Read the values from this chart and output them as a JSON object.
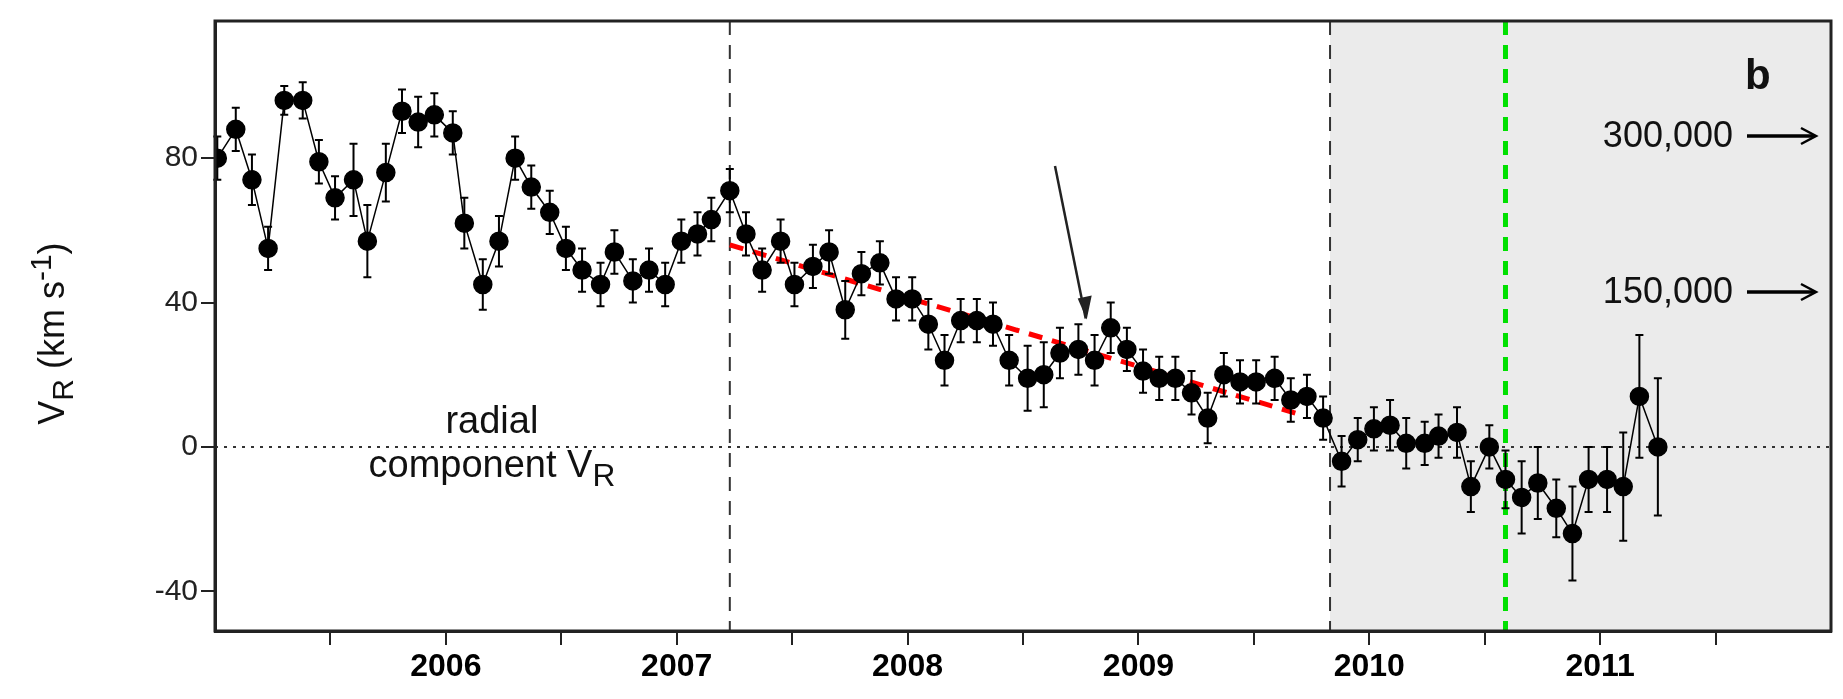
{
  "chart_data": {
    "type": "line",
    "ylabel": "V$_{R}$ (km s$^{-1}$)",
    "xlim": [
      2005.5,
      2012.5
    ],
    "xticks": [
      {
        "value": 2006,
        "label": null
      },
      {
        "value": 2006.5,
        "label": "2006"
      },
      {
        "value": 2007,
        "label": null
      },
      {
        "value": 2007.5,
        "label": "2007"
      },
      {
        "value": 2008,
        "label": null
      },
      {
        "value": 2008.5,
        "label": "2008"
      },
      {
        "value": 2009,
        "label": null
      },
      {
        "value": 2009.5,
        "label": "2009"
      },
      {
        "value": 2010,
        "label": null
      },
      {
        "value": 2010.5,
        "label": "2010"
      },
      {
        "value": 2011,
        "label": null
      },
      {
        "value": 2011.5,
        "label": "2011"
      },
      {
        "value": 2012,
        "label": null
      }
    ],
    "ylim": [
      -51,
      118
    ],
    "yticks": [
      -40,
      0,
      40,
      80
    ],
    "grid": false,
    "legend": false,
    "marker": "circle",
    "line_style": "solid",
    "series": [
      {
        "color": "#000000",
        "x": [
          2005.51,
          2005.59,
          2005.66,
          2005.73,
          2005.8,
          2005.88,
          2005.95,
          2006.02,
          2006.1,
          2006.16,
          2006.24,
          2006.31,
          2006.38,
          2006.45,
          2006.53,
          2006.58,
          2006.66,
          2006.73,
          2006.8,
          2006.87,
          2006.95,
          2007.02,
          2007.09,
          2007.17,
          2007.23,
          2007.31,
          2007.38,
          2007.45,
          2007.52,
          2007.59,
          2007.65,
          2007.73,
          2007.8,
          2007.87,
          2007.95,
          2008.01,
          2008.09,
          2008.16,
          2008.23,
          2008.3,
          2008.38,
          2008.45,
          2008.52,
          2008.59,
          2008.66,
          2008.73,
          2008.8,
          2008.87,
          2008.94,
          2009.02,
          2009.09,
          2009.16,
          2009.24,
          2009.31,
          2009.38,
          2009.45,
          2009.52,
          2009.59,
          2009.66,
          2009.73,
          2009.8,
          2009.87,
          2009.94,
          2010.01,
          2010.09,
          2010.16,
          2010.23,
          2010.3,
          2010.38,
          2010.45,
          2010.52,
          2010.59,
          2010.66,
          2010.74,
          2010.8,
          2010.88,
          2010.94,
          2011.02,
          2011.09,
          2011.16,
          2011.23,
          2011.31,
          2011.38,
          2011.45,
          2011.53,
          2011.6,
          2011.67,
          2011.75
        ],
        "values": [
          80,
          88,
          74,
          55,
          96,
          96,
          79,
          69,
          74,
          57,
          76,
          93,
          90,
          92,
          87,
          62,
          45,
          57,
          80,
          72,
          65,
          55,
          49,
          45,
          54,
          46,
          49,
          45,
          57,
          59,
          63,
          71,
          59,
          49,
          57,
          45,
          50,
          54,
          38,
          48,
          51,
          41,
          41,
          34,
          24,
          35,
          35,
          34,
          24,
          19,
          20,
          26,
          27,
          24,
          33,
          27,
          21,
          19,
          19,
          15,
          8,
          20,
          18,
          18,
          19,
          13,
          14,
          8,
          -4,
          2,
          5,
          6,
          1,
          1,
          3,
          4,
          -11,
          0,
          -9,
          -14,
          -10,
          -17,
          -24,
          -9,
          -9,
          -11,
          14,
          0
        ],
        "errors": [
          6,
          6,
          7,
          6,
          4,
          5,
          6,
          6,
          10,
          10,
          8,
          6,
          7,
          6,
          6,
          7,
          7,
          7,
          6,
          6,
          6,
          6,
          6,
          6,
          6,
          6,
          6,
          6,
          6,
          6,
          6,
          6,
          6,
          6,
          6,
          6,
          6,
          6,
          8,
          6,
          6,
          6,
          6,
          7,
          7,
          6,
          6,
          6,
          7,
          9,
          9,
          7,
          7,
          7,
          7,
          6,
          6,
          6,
          6,
          6,
          7,
          6,
          6,
          6,
          6,
          6,
          6,
          6,
          7,
          6,
          6,
          7,
          7,
          6,
          6,
          7,
          7,
          6,
          8,
          10,
          10,
          8,
          13,
          9,
          9,
          15,
          17,
          19
        ]
      },
      {
        "type": "line",
        "color": "#ff0000",
        "line_style": "dashed",
        "marker": "none",
        "x": [
          2007.73,
          2010.2
        ],
        "values": [
          56,
          9
        ]
      }
    ],
    "ref_lines": [
      {
        "axis": "x",
        "value": 2007.73,
        "color": "#333333",
        "line_style": "dashed"
      },
      {
        "axis": "x",
        "value": 2010.33,
        "color": "#333333",
        "line_style": "dashed"
      },
      {
        "axis": "x",
        "value": 2011.09,
        "color": "#00e000",
        "line_style": "dashed"
      },
      {
        "axis": "y",
        "value": 0,
        "color": "#333333",
        "line_style": "dotted"
      }
    ],
    "bands": [
      {
        "axis": "x",
        "from": 2010.33,
        "to": 2012.5,
        "color": "#ebebeb"
      }
    ],
    "annotations": [
      "radial\ncomponent V$_{R}$",
      "b",
      "300,000",
      "150,000"
    ]
  }
}
